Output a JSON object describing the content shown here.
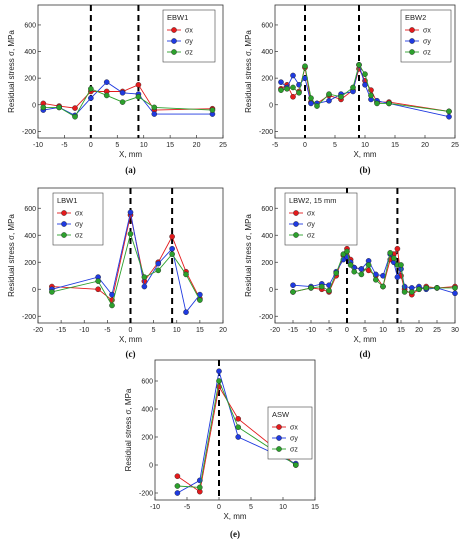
{
  "chart_data": [
    {
      "type": "line",
      "panel_label": "(a)",
      "legend_title": "EBW1",
      "xlabel": "X, mm",
      "ylabel": "Residual stress σ, MPa",
      "xlim": [
        -10,
        25
      ],
      "ylim": [
        -250,
        750
      ],
      "xticks": [
        -10,
        -5,
        0,
        5,
        10,
        15,
        20,
        25
      ],
      "yticks": [
        -200,
        0,
        200,
        400,
        600
      ],
      "dashed_lines_x": [
        0,
        9
      ],
      "series": [
        {
          "name": "σx",
          "sub": "x",
          "color": "#e41a1c",
          "x": [
            -9,
            -6,
            -3,
            0,
            3,
            6,
            9,
            12,
            23
          ],
          "y": [
            10,
            -10,
            -25,
            100,
            100,
            100,
            150,
            -40,
            -30
          ]
        },
        {
          "name": "σy",
          "sub": "y",
          "color": "#1f3ae0",
          "x": [
            -9,
            -6,
            -3,
            0,
            3,
            6,
            9,
            12,
            23
          ],
          "y": [
            -40,
            -20,
            -80,
            50,
            170,
            90,
            80,
            -70,
            -70
          ]
        },
        {
          "name": "σz",
          "sub": "z",
          "color": "#2ca02c",
          "x": [
            -9,
            -6,
            -3,
            0,
            3,
            6,
            9,
            12,
            23
          ],
          "y": [
            -20,
            -20,
            -90,
            120,
            70,
            20,
            60,
            -20,
            -40
          ]
        }
      ]
    },
    {
      "type": "line",
      "panel_label": "(b)",
      "legend_title": "EBW2",
      "xlabel": "X, mm",
      "ylabel": "Residual stress σ, MPa",
      "xlim": [
        -5,
        25
      ],
      "ylim": [
        -250,
        750
      ],
      "xticks": [
        -5,
        0,
        5,
        10,
        15,
        20,
        25
      ],
      "yticks": [
        -200,
        0,
        200,
        400,
        600
      ],
      "dashed_lines_x": [
        0,
        9
      ],
      "series": [
        {
          "name": "σx",
          "sub": "x",
          "color": "#e41a1c",
          "x": [
            -4,
            -3,
            -2,
            -1,
            0,
            1,
            2,
            4,
            6,
            8,
            9,
            10,
            11,
            12,
            14,
            24
          ],
          "y": [
            120,
            150,
            60,
            100,
            280,
            20,
            10,
            70,
            40,
            110,
            270,
            180,
            110,
            20,
            20,
            -50
          ]
        },
        {
          "name": "σy",
          "sub": "y",
          "color": "#1f3ae0",
          "x": [
            -4,
            -3,
            -2,
            -1,
            0,
            1,
            2,
            4,
            6,
            8,
            9,
            10,
            11,
            12,
            14,
            24
          ],
          "y": [
            170,
            130,
            220,
            150,
            200,
            10,
            10,
            30,
            80,
            100,
            300,
            150,
            40,
            30,
            10,
            -90
          ]
        },
        {
          "name": "σz",
          "sub": "z",
          "color": "#2ca02c",
          "x": [
            -4,
            -3,
            -2,
            -1,
            0,
            1,
            2,
            4,
            6,
            8,
            9,
            10,
            11,
            12,
            14,
            24
          ],
          "y": [
            110,
            120,
            130,
            90,
            290,
            50,
            -10,
            80,
            60,
            130,
            300,
            230,
            70,
            10,
            10,
            -50
          ]
        }
      ]
    },
    {
      "type": "line",
      "panel_label": "(c)",
      "legend_title": "LBW1",
      "xlabel": "X, mm",
      "ylabel": "Residual stress σ, MPa",
      "xlim": [
        -20,
        20
      ],
      "ylim": [
        -250,
        750
      ],
      "xticks": [
        -20,
        -15,
        -10,
        -5,
        0,
        5,
        10,
        15,
        20
      ],
      "yticks": [
        -200,
        0,
        200,
        400,
        600
      ],
      "dashed_lines_x": [
        0,
        9
      ],
      "series": [
        {
          "name": "σx",
          "sub": "x",
          "color": "#e41a1c",
          "x": [
            -17,
            -7,
            -4,
            0,
            3,
            6,
            9,
            12,
            15
          ],
          "y": [
            20,
            0,
            -80,
            550,
            60,
            200,
            390,
            130,
            -70
          ]
        },
        {
          "name": "σy",
          "sub": "y",
          "color": "#1f3ae0",
          "x": [
            -17,
            -7,
            -4,
            0,
            3,
            6,
            9,
            12,
            15
          ],
          "y": [
            0,
            90,
            -40,
            570,
            20,
            190,
            300,
            -170,
            -40
          ]
        },
        {
          "name": "σz",
          "sub": "z",
          "color": "#2ca02c",
          "x": [
            -17,
            -7,
            -4,
            0,
            3,
            6,
            9,
            12,
            15
          ],
          "y": [
            -20,
            60,
            -120,
            410,
            90,
            140,
            260,
            110,
            -80
          ]
        }
      ]
    },
    {
      "type": "line",
      "panel_label": "(d)",
      "legend_title": "LBW2, 15 mm",
      "xlabel": "X, mm",
      "ylabel": "Residual stress σ, MPa",
      "xlim": [
        -20,
        30
      ],
      "ylim": [
        -250,
        750
      ],
      "xticks": [
        -20,
        -15,
        -10,
        -5,
        0,
        5,
        10,
        15,
        20,
        25,
        30
      ],
      "yticks": [
        -200,
        0,
        200,
        400,
        600
      ],
      "dashed_lines_x": [
        0,
        14
      ],
      "series": [
        {
          "name": "σx",
          "sub": "x",
          "color": "#e41a1c",
          "x": [
            -15,
            -10,
            -7,
            -5,
            -3,
            -1,
            0,
            1,
            2,
            4,
            6,
            8,
            10,
            12,
            13,
            14,
            15,
            16,
            18,
            20,
            22,
            25,
            30
          ],
          "y": [
            -20,
            10,
            0,
            -20,
            100,
            250,
            300,
            220,
            160,
            150,
            140,
            100,
            20,
            220,
            260,
            300,
            100,
            0,
            -40,
            0,
            20,
            10,
            20
          ]
        },
        {
          "name": "σy",
          "sub": "y",
          "color": "#1f3ae0",
          "x": [
            -15,
            -10,
            -7,
            -5,
            -3,
            -1,
            0,
            1,
            2,
            4,
            6,
            8,
            10,
            12,
            13,
            14,
            15,
            16,
            18,
            20,
            22,
            25,
            30
          ],
          "y": [
            30,
            20,
            40,
            30,
            130,
            220,
            240,
            200,
            160,
            150,
            210,
            110,
            100,
            260,
            200,
            90,
            150,
            20,
            10,
            20,
            0,
            10,
            -30
          ]
        },
        {
          "name": "σz",
          "sub": "z",
          "color": "#2ca02c",
          "x": [
            -15,
            -10,
            -7,
            -5,
            -3,
            -1,
            0,
            1,
            2,
            4,
            6,
            8,
            10,
            12,
            13,
            14,
            15,
            16,
            18,
            20,
            22,
            25,
            30
          ],
          "y": [
            -20,
            10,
            20,
            -10,
            120,
            260,
            280,
            180,
            130,
            110,
            180,
            70,
            20,
            270,
            230,
            180,
            180,
            -20,
            -20,
            0,
            10,
            10,
            10
          ]
        }
      ]
    },
    {
      "type": "line",
      "panel_label": "(e)",
      "legend_title": "ASW",
      "xlabel": "X, mm",
      "ylabel": "Residual stress σ, MPa",
      "xlim": [
        -10,
        15
      ],
      "ylim": [
        -250,
        750
      ],
      "xticks": [
        -10,
        -5,
        0,
        5,
        10,
        15
      ],
      "yticks": [
        -200,
        0,
        200,
        400,
        600
      ],
      "dashed_lines_x": [
        0
      ],
      "series": [
        {
          "name": "σx",
          "sub": "x",
          "color": "#e41a1c",
          "x": [
            -6.5,
            -3,
            0,
            3,
            12
          ],
          "y": [
            -80,
            -190,
            560,
            330,
            0
          ]
        },
        {
          "name": "σy",
          "sub": "y",
          "color": "#1f3ae0",
          "x": [
            -6.5,
            -3,
            0,
            3,
            12
          ],
          "y": [
            -200,
            -110,
            670,
            200,
            10
          ]
        },
        {
          "name": "σz",
          "sub": "z",
          "color": "#2ca02c",
          "x": [
            -6.5,
            -3,
            0,
            3,
            12
          ],
          "y": [
            -150,
            -160,
            600,
            270,
            0
          ]
        }
      ]
    }
  ]
}
